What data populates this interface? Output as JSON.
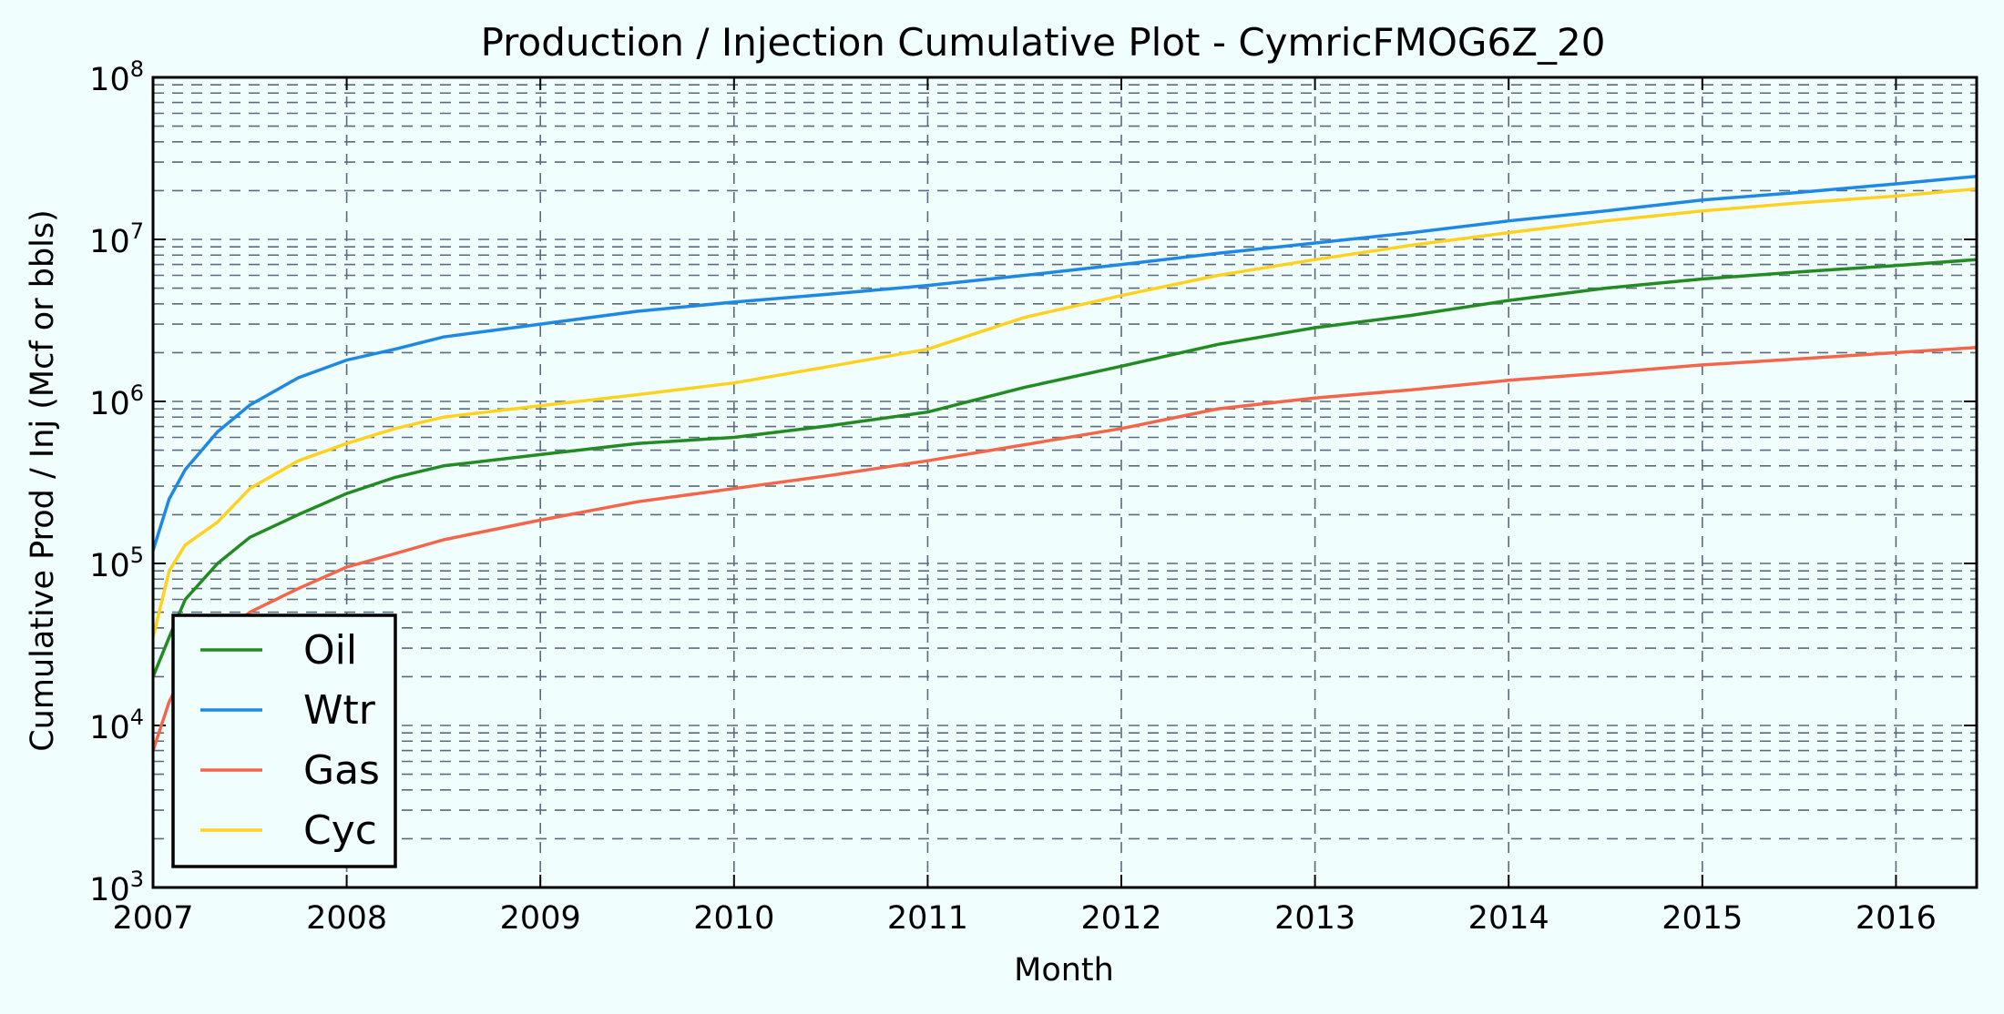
{
  "chart_data": {
    "type": "line",
    "title": "Production / Injection Cumulative Plot - CymricFMOG6Z_20",
    "xlabel": "Month",
    "ylabel": "Cumulative Prod / Inj (Mcf or bbls)",
    "xlim": [
      "2007-01",
      "2016-06"
    ],
    "ylim": [
      1000,
      100000000
    ],
    "yscale": "log",
    "grid": true,
    "legend_position": "lower-left",
    "x_tick_labels": [
      "2007",
      "2008",
      "2009",
      "2010",
      "2011",
      "2012",
      "2013",
      "2014",
      "2015",
      "2016"
    ],
    "y_tick_labels": [
      {
        "base": "10",
        "exp": "3"
      },
      {
        "base": "10",
        "exp": "4"
      },
      {
        "base": "10",
        "exp": "5"
      },
      {
        "base": "10",
        "exp": "6"
      },
      {
        "base": "10",
        "exp": "7"
      },
      {
        "base": "10",
        "exp": "8"
      }
    ],
    "x": [
      "2007-01",
      "2007-02",
      "2007-03",
      "2007-05",
      "2007-07",
      "2007-10",
      "2008-01",
      "2008-04",
      "2008-07",
      "2009-01",
      "2009-07",
      "2010-01",
      "2010-07",
      "2011-01",
      "2011-07",
      "2012-01",
      "2012-07",
      "2013-01",
      "2013-07",
      "2014-01",
      "2014-07",
      "2015-01",
      "2015-07",
      "2016-01",
      "2016-06"
    ],
    "series": [
      {
        "name": "Oil",
        "color": "#228b22",
        "values": [
          20000,
          35000,
          60000,
          100000,
          145000,
          200000,
          270000,
          340000,
          400000,
          470000,
          550000,
          600000,
          710000,
          860000,
          1220000,
          1650000,
          2250000,
          2850000,
          3400000,
          4200000,
          5000000,
          5700000,
          6300000,
          6900000,
          7500000
        ]
      },
      {
        "name": "Wtr",
        "color": "#1e88e5",
        "values": [
          120000,
          250000,
          380000,
          650000,
          950000,
          1400000,
          1800000,
          2100000,
          2500000,
          3000000,
          3600000,
          4100000,
          4600000,
          5200000,
          6000000,
          7000000,
          8200000,
          9500000,
          11000000,
          13000000,
          15000000,
          17500000,
          19500000,
          22000000,
          24500000
        ]
      },
      {
        "name": "Gas",
        "color": "#f4654a",
        "values": [
          7000,
          14000,
          22000,
          35000,
          50000,
          70000,
          95000,
          115000,
          140000,
          185000,
          240000,
          290000,
          350000,
          430000,
          540000,
          680000,
          900000,
          1050000,
          1180000,
          1350000,
          1500000,
          1680000,
          1830000,
          2000000,
          2150000
        ]
      },
      {
        "name": "Cyc",
        "color": "#ffd21f",
        "values": [
          35000,
          90000,
          130000,
          180000,
          290000,
          430000,
          550000,
          680000,
          800000,
          940000,
          1100000,
          1300000,
          1650000,
          2100000,
          3300000,
          4500000,
          6000000,
          7500000,
          9200000,
          11000000,
          13000000,
          15000000,
          16800000,
          18500000,
          20500000
        ]
      }
    ]
  }
}
